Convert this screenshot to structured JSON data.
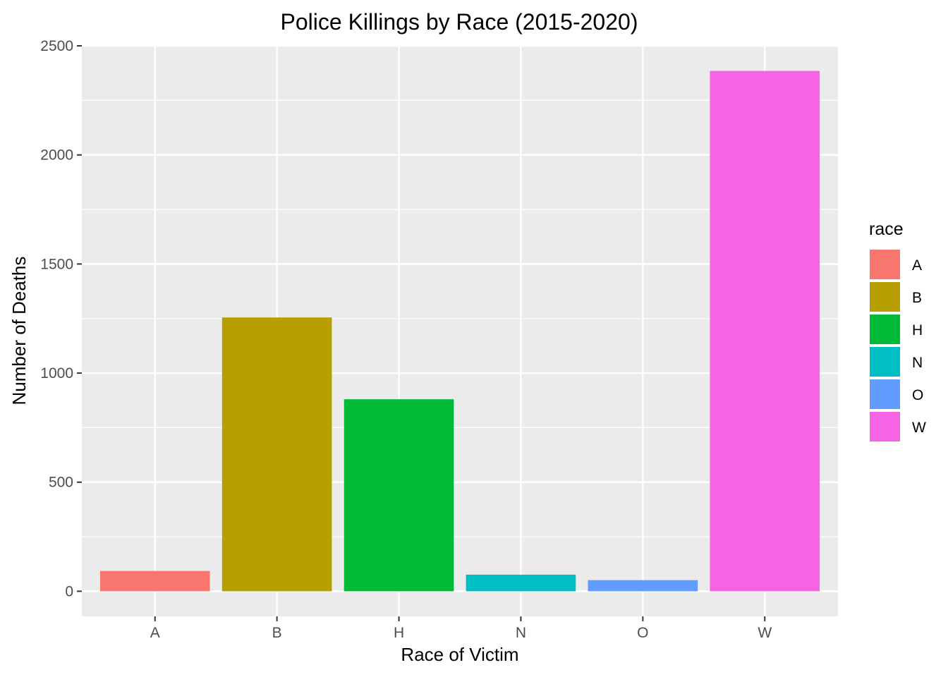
{
  "chart_data": {
    "type": "bar",
    "title": "Police Killings by Race (2015-2020)",
    "xlabel": "Race of Victim",
    "ylabel": "Number of Deaths",
    "categories": [
      "A",
      "B",
      "H",
      "N",
      "O",
      "W"
    ],
    "values": [
      93,
      1255,
      880,
      76,
      51,
      2385
    ],
    "colors": [
      "#F8766D",
      "#B79F00",
      "#00BA38",
      "#00BFC4",
      "#619CFF",
      "#F564E3"
    ],
    "ylim": [
      -115,
      2500
    ],
    "y_ticks": [
      0,
      500,
      1000,
      1500,
      2000,
      2500
    ],
    "y_tick_labels": [
      "0",
      "500",
      "1000",
      "1500",
      "2000",
      "2500"
    ],
    "grid": true,
    "legend": {
      "title": "race",
      "position": "right",
      "entries": [
        "A",
        "B",
        "H",
        "N",
        "O",
        "W"
      ]
    }
  }
}
